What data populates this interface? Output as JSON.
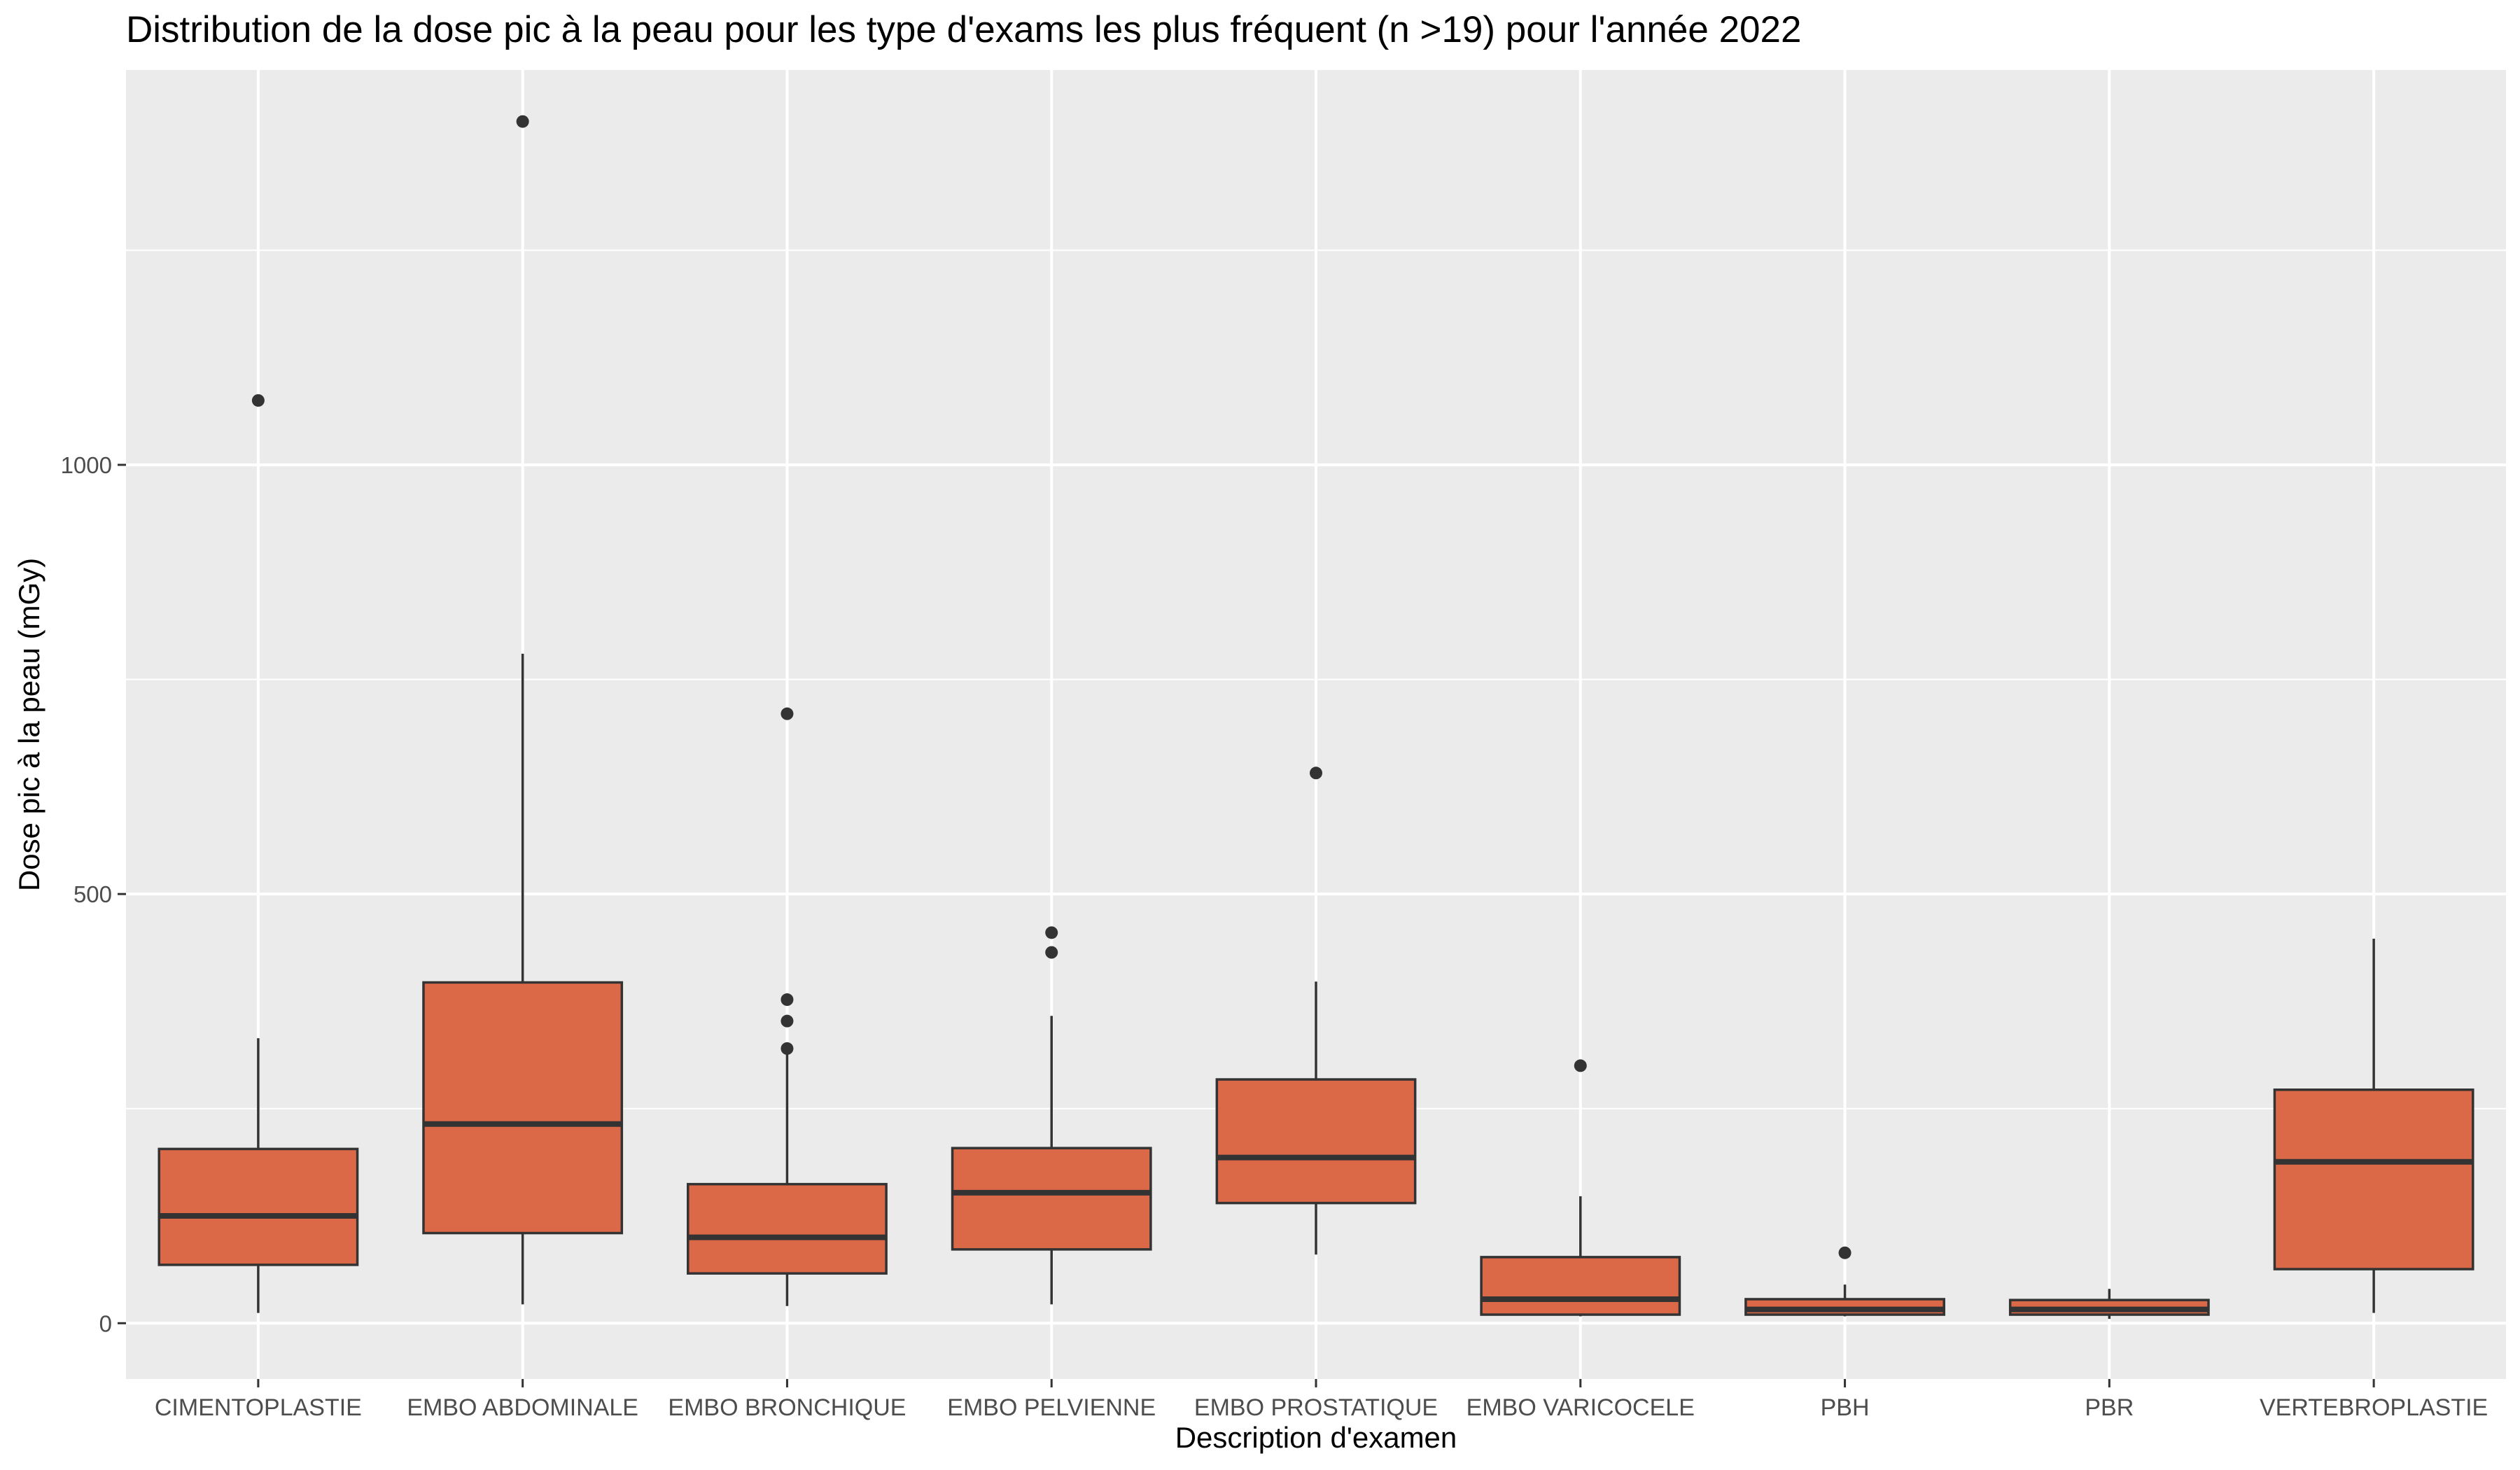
{
  "chart_data": {
    "type": "boxplot",
    "title": "Distribution de la dose pic à la peau pour les type d'exams les plus fréquent (n >19) pour l'année 2022",
    "xlabel": "Description d'examen",
    "ylabel": "Dose pic à la peau (mGy)",
    "ylim": [
      -65,
      1460
    ],
    "yticks": [
      0,
      500,
      1000
    ],
    "grid": true,
    "box_color": "#DB6847",
    "line_color": "#333333",
    "panel_color": "#EBEBEB",
    "grid_color": "#FFFFFF",
    "categories": [
      "CIMENTOPLASTIE",
      "EMBO ABDOMINALE",
      "EMBO BRONCHIQUE",
      "EMBO PELVIENNE",
      "EMBO PROSTATIQUE",
      "EMBO VARICOCELE",
      "PBH",
      "PBR",
      "VERTEBROPLASTIE"
    ],
    "boxes": [
      {
        "min": 12,
        "q1": 68,
        "median": 125,
        "q3": 203,
        "max": 332,
        "outliers": [
          1075
        ]
      },
      {
        "min": 22,
        "q1": 105,
        "median": 232,
        "q3": 397,
        "max": 780,
        "outliers": [
          1400
        ]
      },
      {
        "min": 20,
        "q1": 58,
        "median": 100,
        "q3": 162,
        "max": 315,
        "outliers": [
          320,
          352,
          377,
          710
        ]
      },
      {
        "min": 22,
        "q1": 86,
        "median": 152,
        "q3": 204,
        "max": 358,
        "outliers": [
          432,
          455
        ]
      },
      {
        "min": 80,
        "q1": 140,
        "median": 193,
        "q3": 284,
        "max": 398,
        "outliers": [
          641
        ]
      },
      {
        "min": 8,
        "q1": 10,
        "median": 28,
        "q3": 77,
        "max": 148,
        "outliers": [
          300
        ]
      },
      {
        "min": 8,
        "q1": 10,
        "median": 16,
        "q3": 28,
        "max": 45,
        "outliers": [
          82
        ]
      },
      {
        "min": 5,
        "q1": 10,
        "median": 16,
        "q3": 27,
        "max": 40,
        "outliers": []
      },
      {
        "min": 12,
        "q1": 63,
        "median": 188,
        "q3": 272,
        "max": 448,
        "outliers": []
      }
    ]
  }
}
